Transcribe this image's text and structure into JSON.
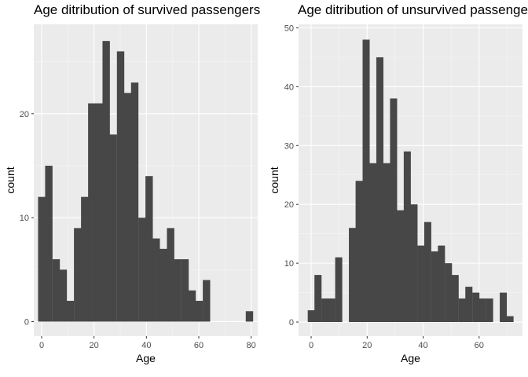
{
  "chart_data": [
    {
      "type": "bar",
      "title": "Age ditribution of survived passengers",
      "xlabel": "Age",
      "ylabel": "count",
      "bin_width": 2.73,
      "xlim": [
        -3,
        82.5
      ],
      "ylim": [
        -1.4,
        28.6
      ],
      "xticks": [
        0,
        20,
        40,
        60,
        80
      ],
      "yticks": [
        0,
        10,
        20
      ],
      "grid": true,
      "legend": "none",
      "bar_color": "#474747",
      "panel_bg": "#ebebeb",
      "bin_centers": [
        0,
        2.7,
        5.5,
        8.2,
        10.9,
        13.7,
        16.4,
        19.1,
        21.9,
        24.6,
        27.3,
        30.1,
        32.8,
        35.5,
        38.3,
        41,
        43.7,
        46.5,
        49.2,
        51.9,
        54.7,
        57.4,
        60.1,
        62.9,
        65.6,
        68.3,
        71.1,
        73.8,
        76.5,
        79.3
      ],
      "values": [
        12,
        15,
        6,
        5,
        2,
        9,
        12,
        21,
        21,
        27,
        18,
        26,
        22,
        23,
        10,
        14,
        8,
        7,
        9,
        6,
        6,
        3,
        2,
        4,
        0,
        0,
        0,
        0,
        0,
        1
      ]
    },
    {
      "type": "bar",
      "title": "Age ditribution of unsurvived passengers",
      "xlabel": "Age",
      "ylabel": "count",
      "bin_width": 2.45,
      "xlim": [
        -4.5,
        75.5
      ],
      "ylim": [
        -2.4,
        50.6
      ],
      "xticks": [
        0,
        20,
        40,
        60
      ],
      "yticks": [
        0,
        10,
        20,
        30,
        40,
        50
      ],
      "grid": true,
      "legend": "none",
      "bar_color": "#474747",
      "panel_bg": "#ebebeb",
      "bin_centers": [
        0,
        2.4,
        4.9,
        7.3,
        9.8,
        12.2,
        14.7,
        17.1,
        19.6,
        22,
        24.5,
        26.9,
        29.4,
        31.8,
        34.3,
        36.7,
        39.2,
        41.6,
        44.1,
        46.5,
        49,
        51.4,
        53.9,
        56.3,
        58.8,
        61.2,
        63.7,
        66.1,
        68.6,
        71,
        73.5
      ],
      "values": [
        2,
        8,
        4,
        4,
        11,
        0,
        16,
        24,
        48,
        27,
        45,
        27,
        38,
        19,
        29,
        20,
        13,
        17,
        12,
        13,
        10,
        8,
        4,
        6,
        5,
        4,
        4,
        0,
        5,
        1,
        0
      ]
    }
  ]
}
